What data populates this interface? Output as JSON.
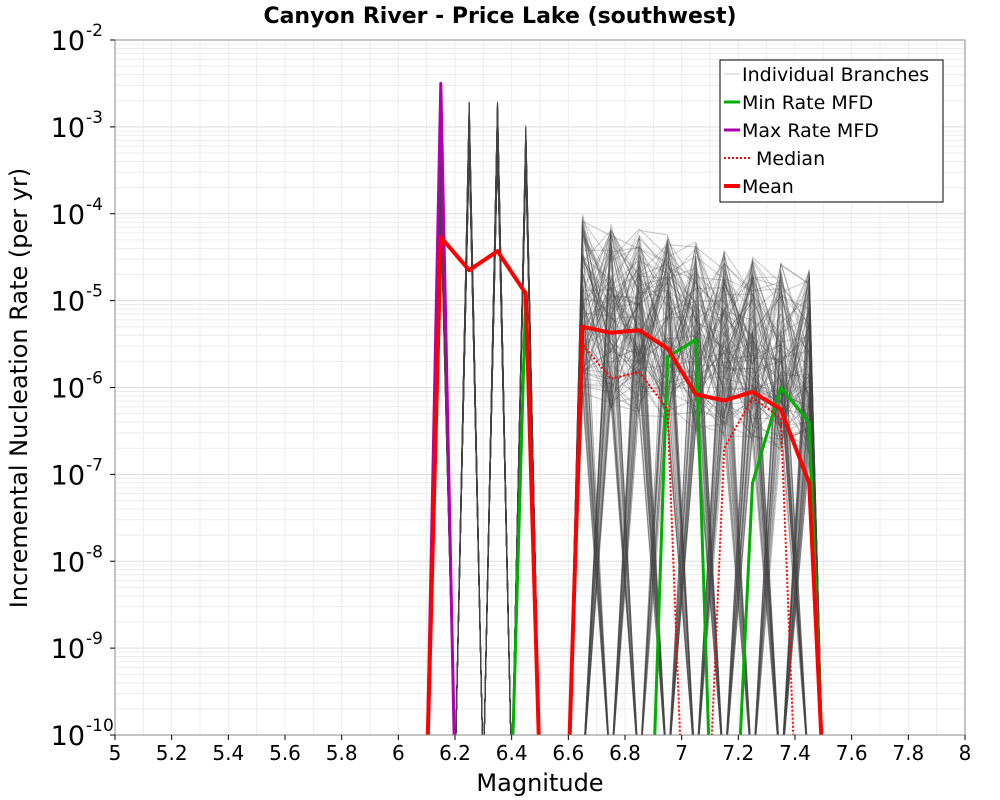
{
  "chart_data": {
    "type": "line",
    "title": "Canyon River - Price Lake (southwest)",
    "xlabel": "Magnitude",
    "ylabel": "Incremental Nucleation Rate (per yr)",
    "xlim": [
      5,
      8
    ],
    "ylim_log10": [
      -10,
      -2
    ],
    "xticks": [
      "5",
      "5.2",
      "5.4",
      "5.6",
      "5.8",
      "6",
      "6.2",
      "6.4",
      "6.6",
      "6.8",
      "7",
      "7.2",
      "7.4",
      "7.6",
      "7.8",
      "8"
    ],
    "yticks": [
      {
        "base": "10",
        "exp": "-10"
      },
      {
        "base": "10",
        "exp": "-9"
      },
      {
        "base": "10",
        "exp": "-8"
      },
      {
        "base": "10",
        "exp": "-7"
      },
      {
        "base": "10",
        "exp": "-6"
      },
      {
        "base": "10",
        "exp": "-5"
      },
      {
        "base": "10",
        "exp": "-4"
      },
      {
        "base": "10",
        "exp": "-3"
      },
      {
        "base": "10",
        "exp": "-2"
      }
    ],
    "grid": true,
    "legend_position": "top-right",
    "legend": [
      {
        "label": "Individual Branches",
        "color": "#c8c8c8",
        "style": "solid-thin"
      },
      {
        "label": "Min Rate MFD",
        "color": "#00b000",
        "style": "solid"
      },
      {
        "label": "Max Rate MFD",
        "color": "#b000b0",
        "style": "solid"
      },
      {
        "label": "Median",
        "color": "#ff0000",
        "style": "dotted"
      },
      {
        "label": "Mean",
        "color": "#ff0000",
        "style": "solid-thick"
      }
    ],
    "series": [
      {
        "name": "Mean",
        "color": "#ff0000",
        "x": [
          6.1,
          6.15,
          6.25,
          6.35,
          6.45,
          6.5,
          6.6,
          6.65,
          6.75,
          6.85,
          6.95,
          7.05,
          7.15,
          7.25,
          7.35,
          7.45,
          7.5
        ],
        "log10y": [
          -10.5,
          -4.27,
          -4.65,
          -4.43,
          -4.92,
          -10.5,
          -10.5,
          -5.3,
          -5.37,
          -5.34,
          -5.55,
          -6.08,
          -6.15,
          -6.05,
          -6.25,
          -7.1,
          -10.5
        ]
      },
      {
        "name": "Median",
        "color": "#ff0000",
        "x": [
          6.6,
          6.65,
          6.75,
          6.85,
          6.95,
          7.0,
          7.1,
          7.15,
          7.25,
          7.35,
          7.4
        ],
        "log10y": [
          -10.5,
          -5.5,
          -5.9,
          -5.82,
          -6.25,
          -10.5,
          -10.5,
          -6.7,
          -6.12,
          -6.35,
          -10.5
        ]
      },
      {
        "name": "Min Rate MFD",
        "color": "#00b000",
        "x": [
          6.4,
          6.45,
          6.5,
          6.9,
          6.95,
          7.05,
          7.1,
          7.2,
          7.25,
          7.35,
          7.45,
          7.5
        ],
        "log10y": [
          -10.5,
          -4.9,
          -10.5,
          -10.5,
          -5.65,
          -5.45,
          -10.5,
          -10.5,
          -7.1,
          -6.0,
          -6.4,
          -10.5
        ]
      },
      {
        "name": "Max Rate MFD",
        "color": "#b000b0",
        "x": [
          6.1,
          6.15,
          6.2
        ],
        "log10y": [
          -10.5,
          -2.5,
          -10.5
        ]
      },
      {
        "name": "Individual Branches",
        "color": "#444444",
        "x": [
          6.25,
          6.35,
          6.45
        ],
        "log10y": [
          -2.7,
          -2.7,
          -2.98
        ],
        "note": "hundreds of logic-tree branches, peaks near 2e-3 to 1e-3 for M6.25-6.45 and 1e-4 to 5e-6 for M6.65-7.45"
      }
    ]
  }
}
